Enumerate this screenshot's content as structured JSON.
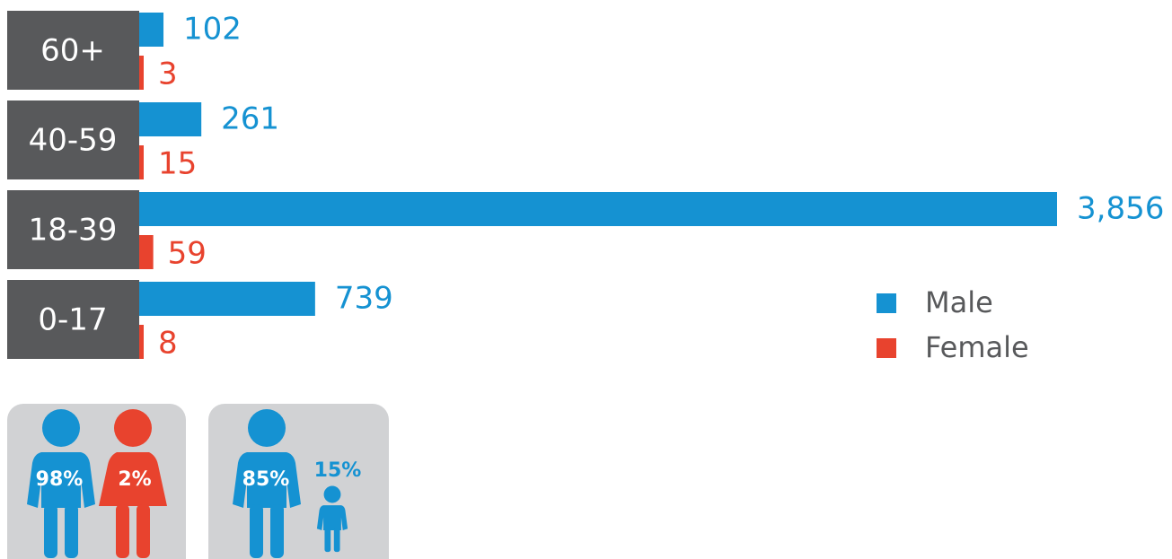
{
  "chart_data": {
    "type": "bar",
    "orientation": "horizontal",
    "categories": [
      "60+",
      "40-59",
      "18-39",
      "0-17"
    ],
    "series": [
      {
        "name": "Male",
        "color": "#1592d2",
        "values": [
          102,
          261,
          3856,
          739
        ],
        "value_labels": [
          "102",
          "261",
          "3,856",
          "739"
        ]
      },
      {
        "name": "Female",
        "color": "#e8432e",
        "values": [
          3,
          15,
          59,
          8
        ],
        "value_labels": [
          "3",
          "15",
          "59",
          "8"
        ]
      }
    ],
    "category_box_color": "#58595b",
    "legend": "right"
  },
  "icons": {
    "gender": {
      "values": [
        98,
        2
      ],
      "value_labels": [
        "98%",
        "2%"
      ],
      "colors": [
        "#1592d2",
        "#e8432e"
      ]
    },
    "age": {
      "values": [
        85,
        15
      ],
      "value_labels": [
        "85%",
        "15%"
      ],
      "colors": [
        "#1592d2",
        "#1592d2"
      ]
    }
  }
}
